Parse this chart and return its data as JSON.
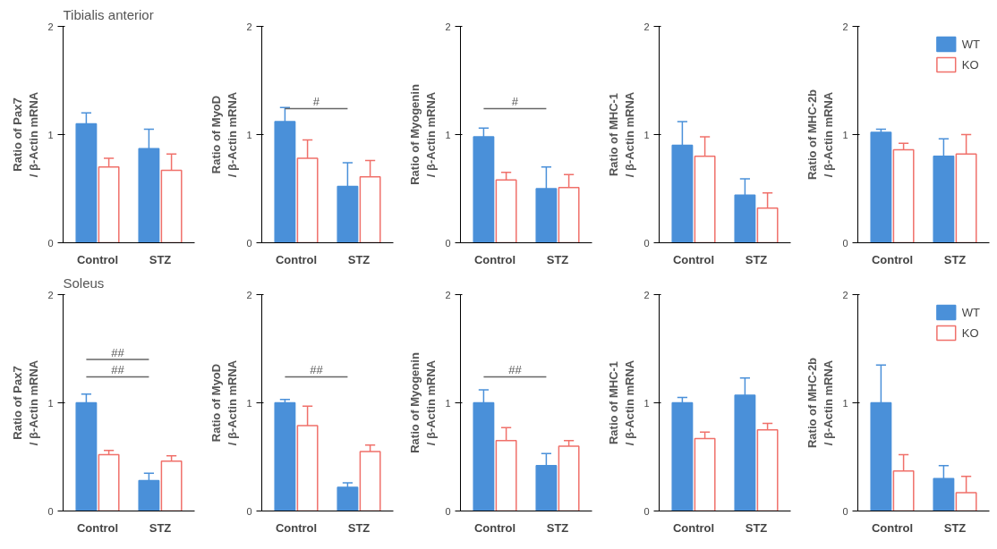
{
  "chart_data": [
    {
      "type": "bar",
      "title": "Tibialis anterior",
      "ylabel": "Ratio of Pax7\n/ β-Actin mRNA",
      "categories": [
        "Control",
        "STZ"
      ],
      "ylim": [
        0,
        2
      ],
      "yticks": [
        0,
        1,
        2
      ],
      "grid": false,
      "legend": false,
      "series": [
        {
          "color": "#4a90d9",
          "values": [
            1.1,
            0.87
          ],
          "errors": [
            0.1,
            0.18
          ]
        },
        {
          "color": "#f0706a",
          "values": [
            0.7,
            0.67
          ],
          "errors": [
            0.08,
            0.15
          ]
        }
      ]
    },
    {
      "type": "bar",
      "ylabel": "Ratio of MyoD\n/ β-Actin mRNA",
      "categories": [
        "Control",
        "STZ"
      ],
      "ylim": [
        0,
        2
      ],
      "yticks": [
        0,
        1,
        2
      ],
      "grid": false,
      "legend": false,
      "annotations": [
        "#"
      ],
      "series": [
        {
          "color": "#4a90d9",
          "values": [
            1.12,
            0.52
          ],
          "errors": [
            0.13,
            0.22
          ]
        },
        {
          "color": "#f0706a",
          "values": [
            0.78,
            0.61
          ],
          "errors": [
            0.17,
            0.15
          ]
        }
      ]
    },
    {
      "type": "bar",
      "ylabel": "Ratio of Myogenin\n/ β-Actin mRNA",
      "categories": [
        "Control",
        "STZ"
      ],
      "ylim": [
        0,
        2
      ],
      "yticks": [
        0,
        1,
        2
      ],
      "grid": false,
      "legend": false,
      "annotations": [
        "#"
      ],
      "series": [
        {
          "color": "#4a90d9",
          "values": [
            0.98,
            0.5
          ],
          "errors": [
            0.08,
            0.2
          ]
        },
        {
          "color": "#f0706a",
          "values": [
            0.58,
            0.51
          ],
          "errors": [
            0.07,
            0.12
          ]
        }
      ]
    },
    {
      "type": "bar",
      "ylabel": "Ratio of MHC-1\n/ β-Actin mRNA",
      "categories": [
        "Control",
        "STZ"
      ],
      "ylim": [
        0,
        2
      ],
      "yticks": [
        0,
        1,
        2
      ],
      "grid": false,
      "legend": false,
      "series": [
        {
          "color": "#4a90d9",
          "values": [
            0.9,
            0.44
          ],
          "errors": [
            0.22,
            0.15
          ]
        },
        {
          "color": "#f0706a",
          "values": [
            0.8,
            0.32
          ],
          "errors": [
            0.18,
            0.14
          ]
        }
      ]
    },
    {
      "type": "bar",
      "ylabel": "Ratio of MHC-2b\n/ β-Actin mRNA",
      "categories": [
        "Control",
        "STZ"
      ],
      "ylim": [
        0,
        2
      ],
      "yticks": [
        0,
        1,
        2
      ],
      "grid": false,
      "legend": "top right",
      "series": [
        {
          "name": "WT",
          "color": "#4a90d9",
          "values": [
            1.02,
            0.8
          ],
          "errors": [
            0.03,
            0.16
          ]
        },
        {
          "name": "KO",
          "color": "#f0706a",
          "values": [
            0.86,
            0.82
          ],
          "errors": [
            0.06,
            0.18
          ]
        }
      ]
    },
    {
      "type": "bar",
      "title": "Soleus",
      "ylabel": "Ratio of Pax7\n/ β-Actin mRNA",
      "categories": [
        "Control",
        "STZ"
      ],
      "ylim": [
        0,
        2
      ],
      "yticks": [
        0,
        1,
        2
      ],
      "grid": false,
      "legend": false,
      "annotations": [
        "##",
        "##"
      ],
      "series": [
        {
          "color": "#4a90d9",
          "values": [
            1.0,
            0.28
          ],
          "errors": [
            0.08,
            0.07
          ]
        },
        {
          "color": "#f0706a",
          "values": [
            0.52,
            0.46
          ],
          "errors": [
            0.04,
            0.05
          ]
        }
      ]
    },
    {
      "type": "bar",
      "ylabel": "Ratio of MyoD\n/ β-Actin mRNA",
      "categories": [
        "Control",
        "STZ"
      ],
      "ylim": [
        0,
        2
      ],
      "yticks": [
        0,
        1,
        2
      ],
      "grid": false,
      "legend": false,
      "annotations": [
        "##"
      ],
      "series": [
        {
          "color": "#4a90d9",
          "values": [
            1.0,
            0.22
          ],
          "errors": [
            0.03,
            0.04
          ]
        },
        {
          "color": "#f0706a",
          "values": [
            0.79,
            0.55
          ],
          "errors": [
            0.18,
            0.06
          ]
        }
      ]
    },
    {
      "type": "bar",
      "ylabel": "Ratio of Myogenin\n/ β-Actin mRNA",
      "categories": [
        "Control",
        "STZ"
      ],
      "ylim": [
        0,
        2
      ],
      "yticks": [
        0,
        1,
        2
      ],
      "grid": false,
      "legend": false,
      "annotations": [
        "##"
      ],
      "series": [
        {
          "color": "#4a90d9",
          "values": [
            1.0,
            0.42
          ],
          "errors": [
            0.12,
            0.11
          ]
        },
        {
          "color": "#f0706a",
          "values": [
            0.65,
            0.6
          ],
          "errors": [
            0.12,
            0.05
          ]
        }
      ]
    },
    {
      "type": "bar",
      "ylabel": "Ratio of MHC-1\n/ β-Actin mRNA",
      "categories": [
        "Control",
        "STZ"
      ],
      "ylim": [
        0,
        2
      ],
      "yticks": [
        0,
        1,
        2
      ],
      "grid": false,
      "legend": false,
      "series": [
        {
          "color": "#4a90d9",
          "values": [
            1.0,
            1.07
          ],
          "errors": [
            0.05,
            0.16
          ]
        },
        {
          "color": "#f0706a",
          "values": [
            0.67,
            0.75
          ],
          "errors": [
            0.06,
            0.06
          ]
        }
      ]
    },
    {
      "type": "bar",
      "ylabel": "Ratio of MHC-2b\n/ β-Actin mRNA",
      "categories": [
        "Control",
        "STZ"
      ],
      "ylim": [
        0,
        2
      ],
      "yticks": [
        0,
        1,
        2
      ],
      "grid": false,
      "legend": "top right",
      "series": [
        {
          "name": "WT",
          "color": "#4a90d9",
          "values": [
            1.0,
            0.3
          ],
          "errors": [
            0.35,
            0.12
          ]
        },
        {
          "name": "KO",
          "color": "#f0706a",
          "values": [
            0.37,
            0.17
          ],
          "errors": [
            0.15,
            0.15
          ]
        }
      ]
    }
  ]
}
